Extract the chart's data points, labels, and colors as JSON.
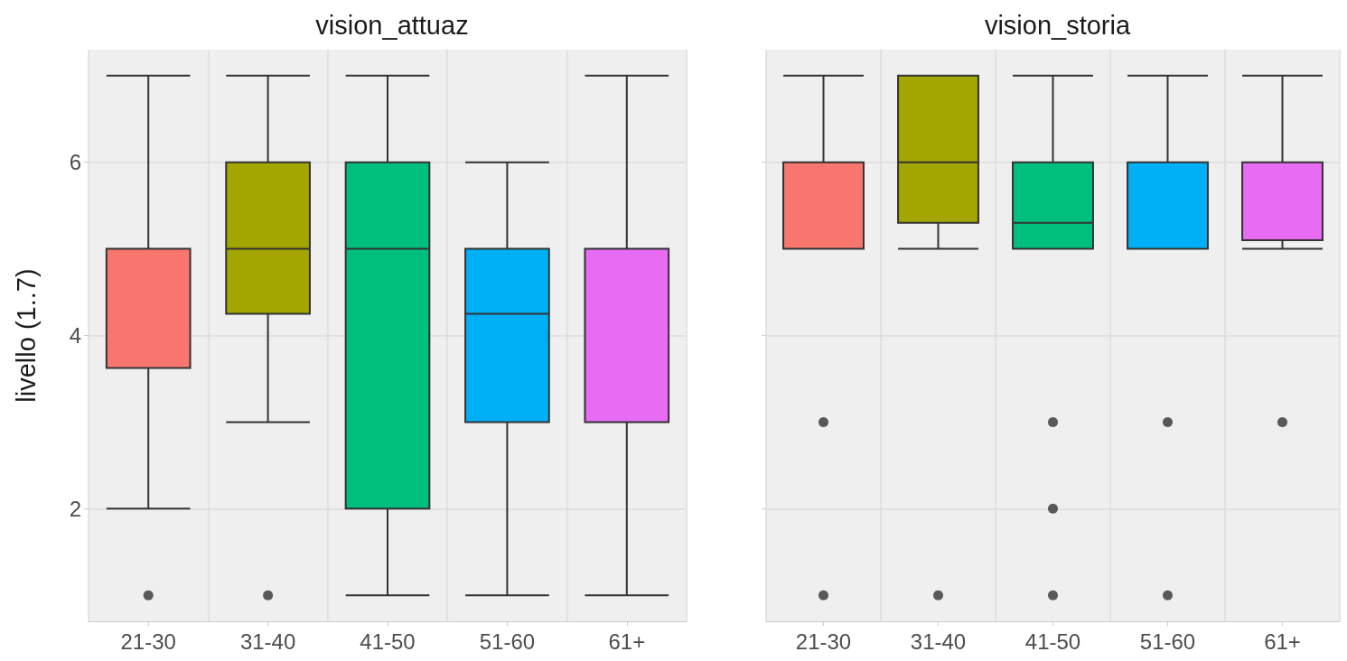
{
  "chart_data": [
    {
      "type": "box",
      "title": "vision_attuaz",
      "ylabel": "livello (1..7)",
      "categories": [
        "21-30",
        "31-40",
        "41-50",
        "51-60",
        "61+"
      ],
      "colors": [
        "#f8766d",
        "#a3a500",
        "#00bf7d",
        "#00b0f6",
        "#e76bf3"
      ],
      "ylim": [
        0.7,
        7.3
      ],
      "yticks": [
        2,
        4,
        6
      ],
      "grid": true,
      "boxes": [
        {
          "low": 2,
          "q1": 3.625,
          "median": 5,
          "q3": 5,
          "high": 7,
          "outliers": [
            1
          ]
        },
        {
          "low": 3,
          "q1": 4.25,
          "median": 5,
          "q3": 6,
          "high": 7,
          "outliers": [
            1
          ]
        },
        {
          "low": 1,
          "q1": 2,
          "median": 5,
          "q3": 6,
          "high": 7
        },
        {
          "low": 1,
          "q1": 3,
          "median": 4.25,
          "q3": 5,
          "high": 6
        },
        {
          "low": 1,
          "q1": 3,
          "median": 5,
          "q3": 5,
          "high": 7
        }
      ]
    },
    {
      "type": "box",
      "title": "vision_storia",
      "categories": [
        "21-30",
        "31-40",
        "41-50",
        "51-60",
        "61+"
      ],
      "colors": [
        "#f8766d",
        "#a3a500",
        "#00bf7d",
        "#00b0f6",
        "#e76bf3"
      ],
      "ylim": [
        0.7,
        7.3
      ],
      "yticks": [
        2,
        4,
        6
      ],
      "grid": true,
      "tick_labels": "x",
      "boxes": [
        {
          "low": 5,
          "q1": 5,
          "median": 6,
          "q3": 6,
          "high": 7,
          "outliers": [
            3,
            1
          ]
        },
        {
          "low": 5,
          "q1": 5.3,
          "median": 6,
          "q3": 7,
          "high": 7,
          "outliers": [
            1
          ]
        },
        {
          "low": 5,
          "q1": 5,
          "median": 5.3,
          "q3": 6,
          "high": 7,
          "outliers": [
            3,
            2,
            1
          ]
        },
        {
          "low": 5,
          "q1": 5,
          "median": 6,
          "q3": 6,
          "high": 7,
          "outliers": [
            3,
            1
          ]
        },
        {
          "low": 5,
          "q1": 5.1,
          "median": 6,
          "q3": 6,
          "high": 7,
          "outliers": [
            3
          ]
        }
      ]
    }
  ]
}
